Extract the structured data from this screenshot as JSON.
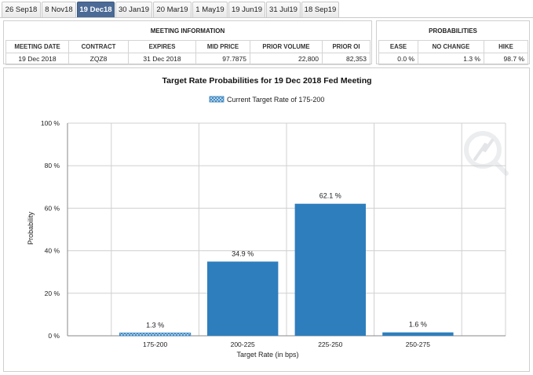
{
  "tabs": [
    {
      "label": "26 Sep18",
      "active": false
    },
    {
      "label": "8 Nov18",
      "active": false
    },
    {
      "label": "19 Dec18",
      "active": true
    },
    {
      "label": "30 Jan19",
      "active": false
    },
    {
      "label": "20 Mar19",
      "active": false
    },
    {
      "label": "1 May19",
      "active": false
    },
    {
      "label": "19 Jun19",
      "active": false
    },
    {
      "label": "31 Jul19",
      "active": false
    },
    {
      "label": "18 Sep19",
      "active": false
    }
  ],
  "meeting_info": {
    "title": "MEETING INFORMATION",
    "headers": [
      "MEETING DATE",
      "CONTRACT",
      "EXPIRES",
      "MID PRICE",
      "PRIOR VOLUME",
      "PRIOR OI"
    ],
    "values": [
      "19 Dec 2018",
      "ZQZ8",
      "31 Dec 2018",
      "97.7875",
      "22,800",
      "82,353"
    ]
  },
  "probabilities": {
    "title": "PROBABILITIES",
    "headers": [
      "EASE",
      "NO CHANGE",
      "HIKE"
    ],
    "values": [
      "0.0 %",
      "1.3 %",
      "98.7 %"
    ]
  },
  "colors": {
    "bar": "#2e7ebd",
    "tab_active": "#4b6a96",
    "grid": "#d0d0d0"
  },
  "chart_data": {
    "type": "bar",
    "title": "Target Rate Probabilities for 19 Dec 2018 Fed Meeting",
    "legend": "Current Target Rate of 175-200",
    "legend_placement": "top-center",
    "xlabel": "Target Rate (in bps)",
    "ylabel": "Probability",
    "categories": [
      "175-200",
      "200-225",
      "225-250",
      "250-275"
    ],
    "values": [
      1.3,
      34.9,
      62.1,
      1.6
    ],
    "value_labels": [
      "1.3 %",
      "34.9 %",
      "62.1 %",
      "1.6 %"
    ],
    "current_category": "175-200",
    "ylim": [
      0,
      100
    ],
    "yticks": [
      0,
      20,
      40,
      60,
      80,
      100
    ],
    "ytick_labels": [
      "0 %",
      "20 %",
      "40 %",
      "60 %",
      "80 %",
      "100 %"
    ],
    "grid": true
  }
}
